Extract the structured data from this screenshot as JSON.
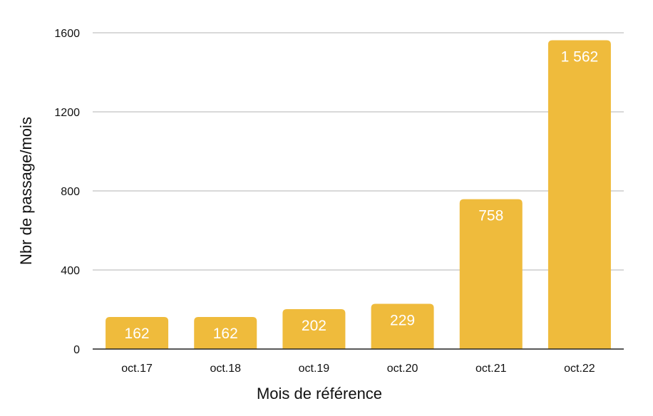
{
  "chart_data": {
    "type": "bar",
    "categories": [
      "oct.17",
      "oct.18",
      "oct.19",
      "oct.20",
      "oct.21",
      "oct.22"
    ],
    "values": [
      162,
      162,
      202,
      229,
      758,
      1562
    ],
    "value_labels": [
      "162",
      "162",
      "202",
      "229",
      "758",
      "1 562"
    ],
    "title": "",
    "xlabel": "Mois de référence",
    "ylabel": "Nbr de passage/mois",
    "ylim": [
      0,
      1600
    ],
    "yticks": [
      0,
      400,
      800,
      1200,
      1600
    ],
    "grid": true,
    "legend": "none",
    "colors": {
      "bar": "#EFBB3C",
      "grid": "#b3b3b3",
      "axis": "#222222",
      "label": "#ffffff"
    }
  }
}
